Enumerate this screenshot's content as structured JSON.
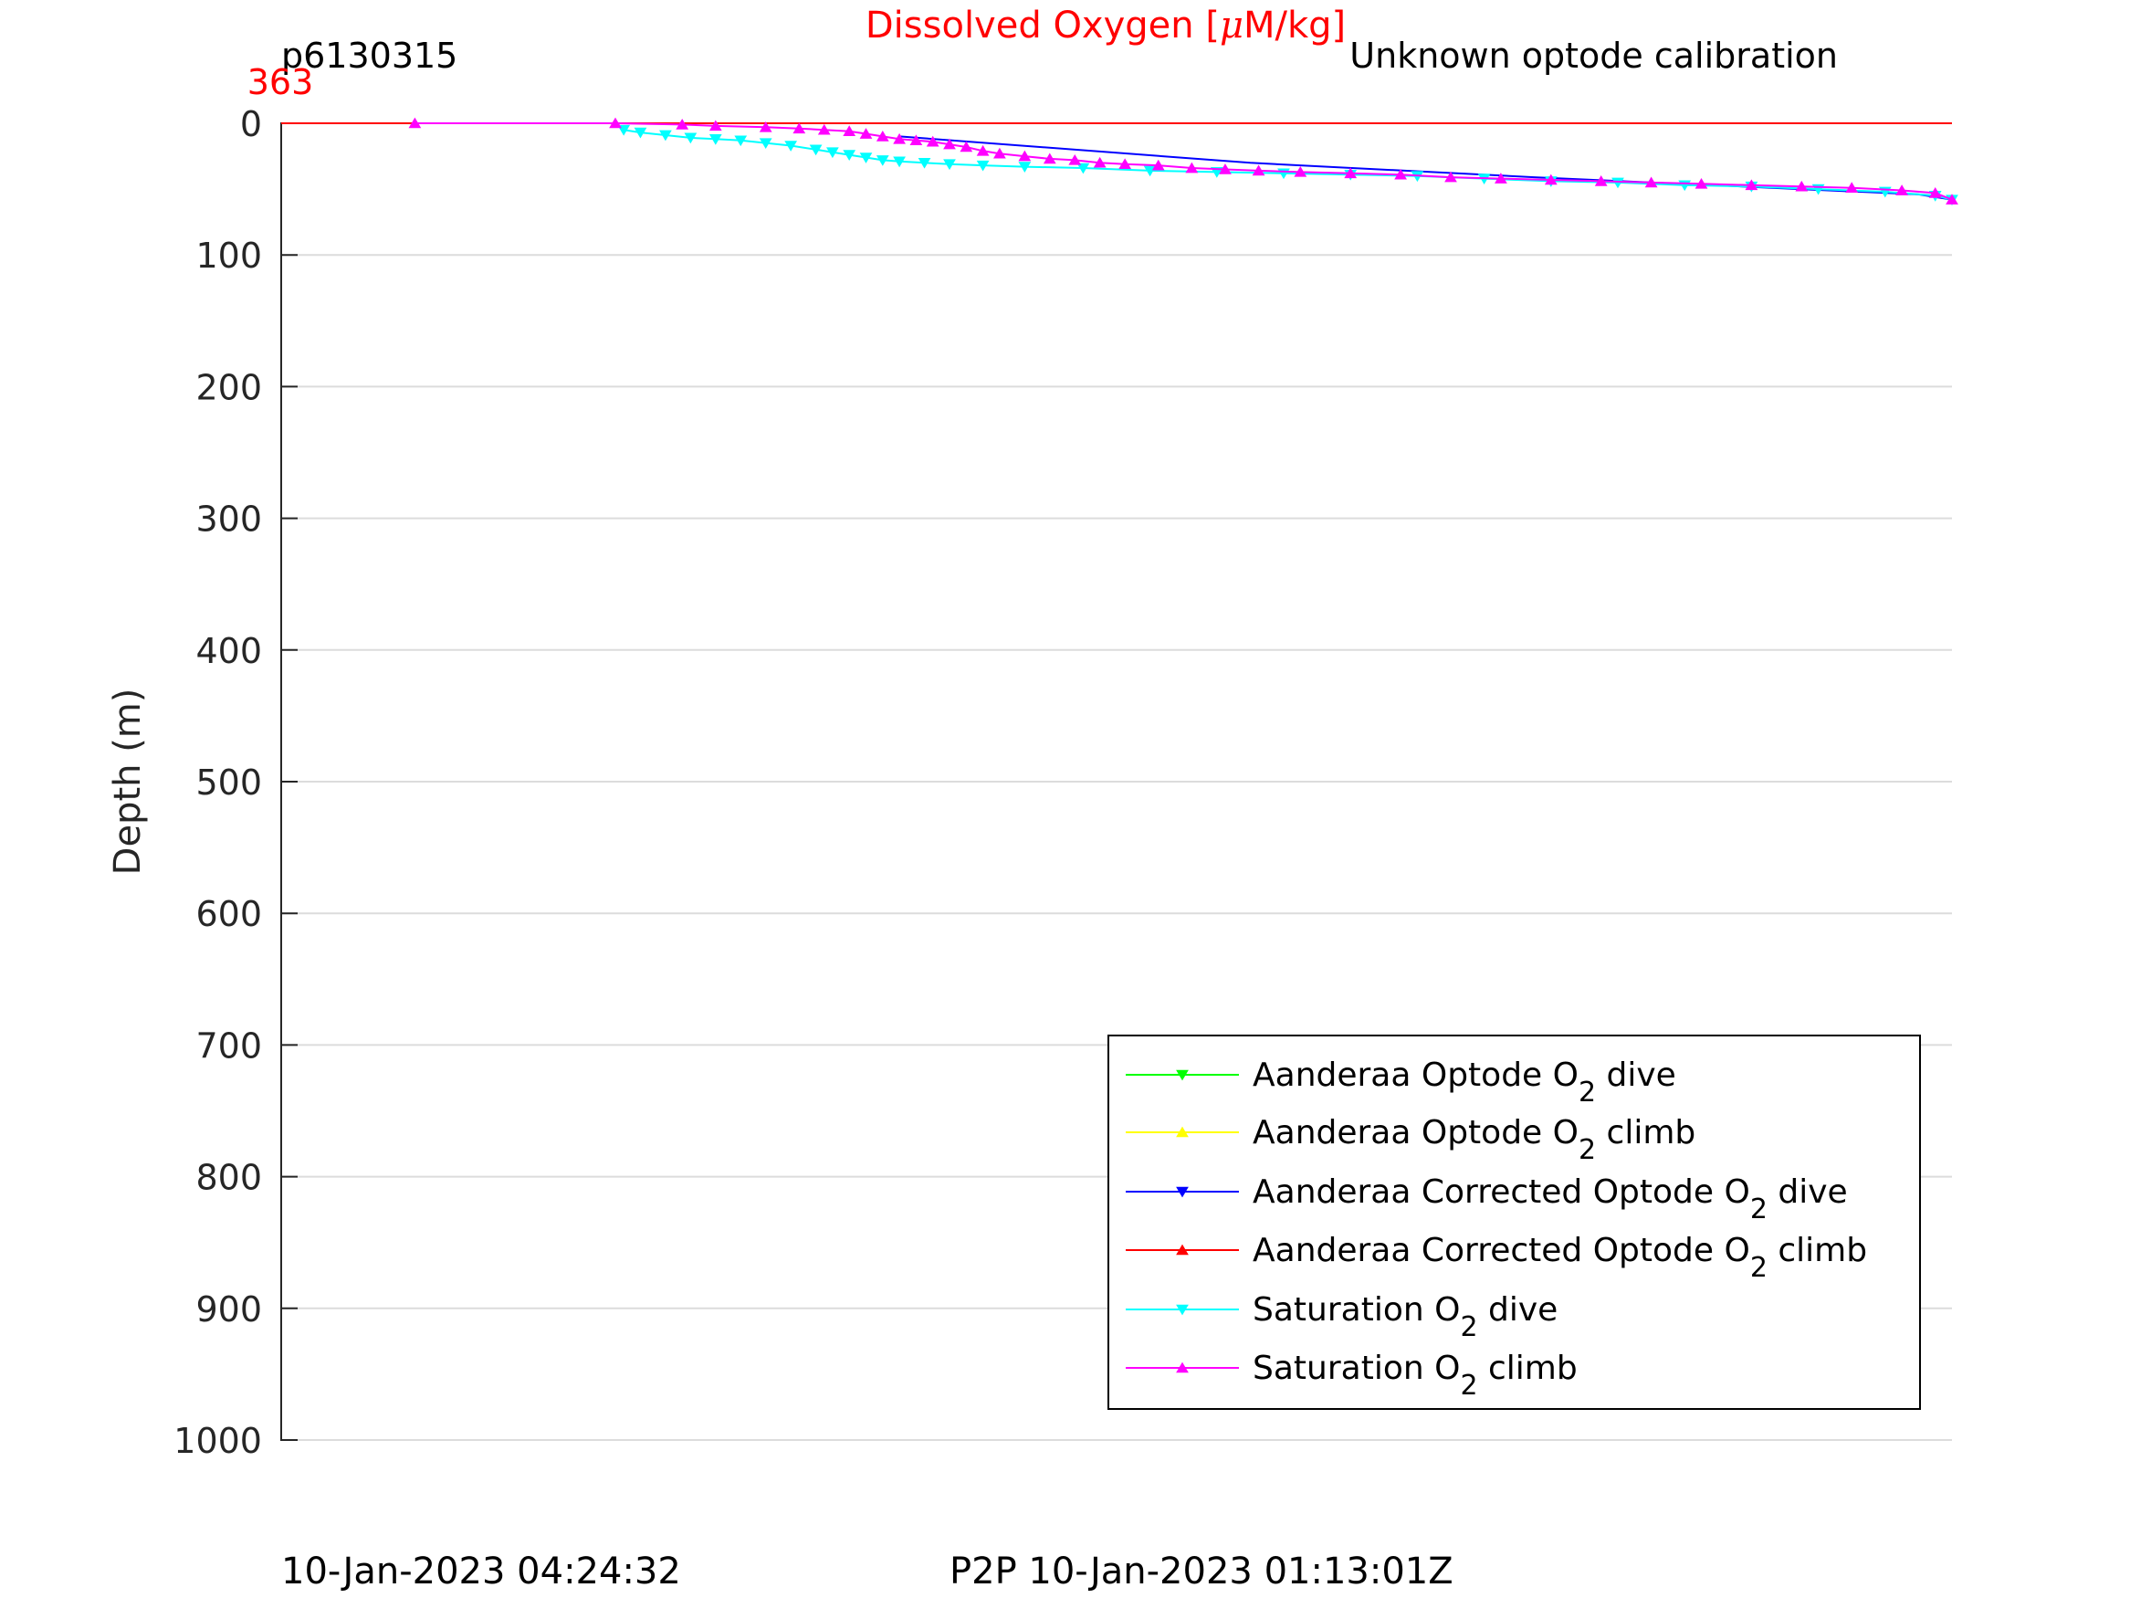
{
  "chart_data": {
    "type": "line",
    "title": "Dissolved Oxygen [",
    "title_mu": "μ",
    "title_unit": "M/kg]",
    "title_color": "#ff0000",
    "glider_id": "p6130315",
    "calibration_note": "Unknown optode calibration",
    "x_top_value": "363",
    "ylabel": "Depth (m)",
    "ylim": [
      0,
      1000
    ],
    "xlim": [
      363,
      373
    ],
    "y_ticks": [
      "0",
      "100",
      "200",
      "300",
      "400",
      "500",
      "600",
      "700",
      "800",
      "900",
      "1000"
    ],
    "footer_left": "10-Jan-2023 04:24:32",
    "footer_center": "P2P 10-Jan-2023 01:13:01Z",
    "legend": [
      {
        "pre": "Aanderaa Optode O",
        "sub": "2",
        "post": " dive",
        "color": "#00ff00",
        "marker": "down"
      },
      {
        "pre": "Aanderaa Optode O",
        "sub": "2",
        "post": " climb",
        "color": "#ffff00",
        "marker": "up"
      },
      {
        "pre": "Aanderaa Corrected Optode O",
        "sub": "2",
        "post": " dive",
        "color": "#0000ff",
        "marker": "down"
      },
      {
        "pre": "Aanderaa Corrected Optode O",
        "sub": "2",
        "post": " climb",
        "color": "#ff0000",
        "marker": "up"
      },
      {
        "pre": "Saturation O",
        "sub": "2",
        "post": " dive",
        "color": "#00ffff",
        "marker": "down"
      },
      {
        "pre": "Saturation O",
        "sub": "2",
        "post": " climb",
        "color": "#ff00ff",
        "marker": "up"
      }
    ],
    "series": [
      {
        "name": "Aanderaa Corrected Optode O2 climb",
        "color": "#ff0000",
        "marker": "none",
        "points": [
          [
            363.0,
            0
          ],
          [
            373.0,
            0
          ]
        ]
      },
      {
        "name": "Aanderaa Corrected Optode O2 dive",
        "color": "#0000ff",
        "marker": "none",
        "points": [
          [
            366.7,
            10
          ],
          [
            368.8,
            30
          ],
          [
            370.5,
            41
          ],
          [
            372.8,
            54
          ],
          [
            373.0,
            58
          ]
        ]
      },
      {
        "name": "Saturation O2 dive",
        "color": "#00ffff",
        "marker": "down",
        "points": [
          [
            365.05,
            5
          ],
          [
            365.15,
            7
          ],
          [
            365.3,
            9
          ],
          [
            365.45,
            11
          ],
          [
            365.6,
            12
          ],
          [
            365.75,
            13
          ],
          [
            365.9,
            15
          ],
          [
            366.05,
            17
          ],
          [
            366.2,
            20
          ],
          [
            366.3,
            22
          ],
          [
            366.4,
            24
          ],
          [
            366.5,
            26
          ],
          [
            366.6,
            28
          ],
          [
            366.7,
            29
          ],
          [
            366.85,
            30
          ],
          [
            367.0,
            31
          ],
          [
            367.2,
            32
          ],
          [
            367.45,
            33
          ],
          [
            367.8,
            34
          ],
          [
            368.2,
            36
          ],
          [
            368.6,
            37
          ],
          [
            369.0,
            38
          ],
          [
            369.4,
            39
          ],
          [
            369.8,
            40
          ],
          [
            370.2,
            42
          ],
          [
            370.6,
            44
          ],
          [
            371.0,
            45
          ],
          [
            371.4,
            47
          ],
          [
            371.8,
            48
          ],
          [
            372.2,
            50
          ],
          [
            372.6,
            52
          ],
          [
            372.9,
            55
          ],
          [
            373.0,
            58
          ]
        ]
      },
      {
        "name": "Saturation O2 climb",
        "color": "#ff00ff",
        "marker": "up",
        "points": [
          [
            363.8,
            0
          ],
          [
            365.0,
            0
          ],
          [
            365.4,
            1
          ],
          [
            365.6,
            2
          ],
          [
            365.9,
            3
          ],
          [
            366.1,
            4
          ],
          [
            366.25,
            5
          ],
          [
            366.4,
            6
          ],
          [
            366.5,
            8
          ],
          [
            366.6,
            10
          ],
          [
            366.7,
            12
          ],
          [
            366.8,
            13
          ],
          [
            366.9,
            14
          ],
          [
            367.0,
            16
          ],
          [
            367.1,
            18
          ],
          [
            367.2,
            21
          ],
          [
            367.3,
            23
          ],
          [
            367.45,
            25
          ],
          [
            367.6,
            27
          ],
          [
            367.75,
            28
          ],
          [
            367.9,
            30
          ],
          [
            368.05,
            31
          ],
          [
            368.25,
            32
          ],
          [
            368.45,
            34
          ],
          [
            368.65,
            35
          ],
          [
            368.85,
            36
          ],
          [
            369.1,
            37
          ],
          [
            369.4,
            38
          ],
          [
            369.7,
            39
          ],
          [
            370.0,
            41
          ],
          [
            370.3,
            42
          ],
          [
            370.6,
            43
          ],
          [
            370.9,
            44
          ],
          [
            371.2,
            45
          ],
          [
            371.5,
            46
          ],
          [
            371.8,
            47
          ],
          [
            372.1,
            48
          ],
          [
            372.4,
            49
          ],
          [
            372.7,
            51
          ],
          [
            372.9,
            53
          ],
          [
            373.0,
            58
          ]
        ]
      }
    ]
  }
}
